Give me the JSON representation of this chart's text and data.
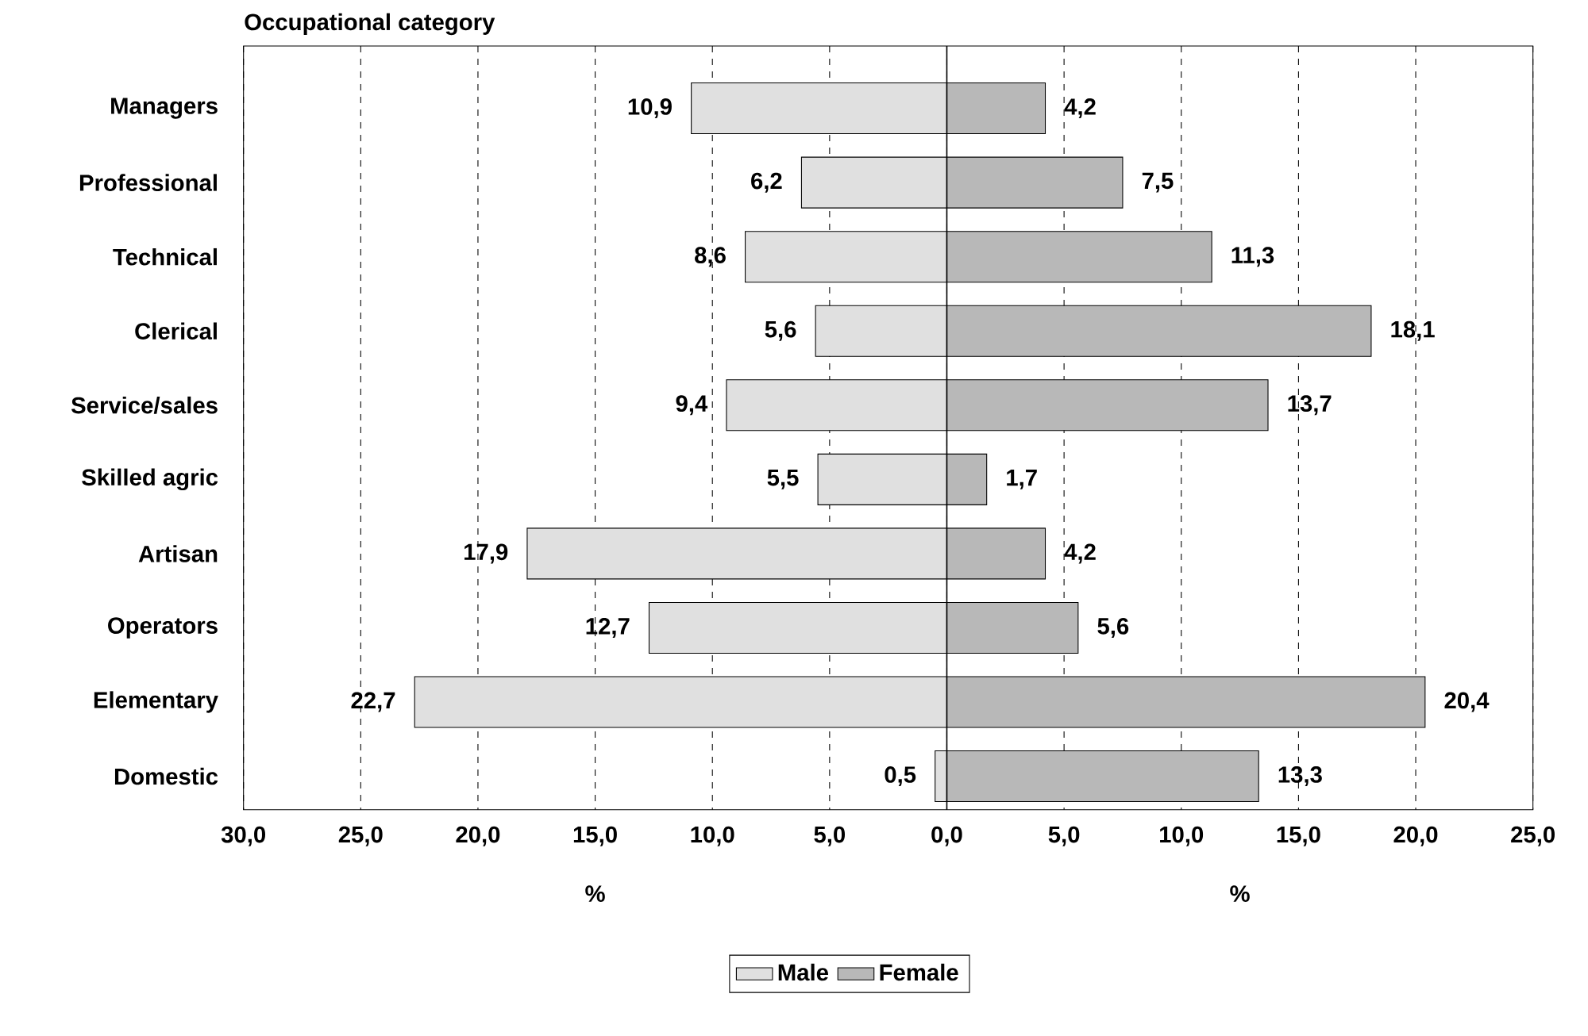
{
  "chart_data": {
    "type": "bar",
    "orientation": "horizontal",
    "ylabel": "Occupational category",
    "xlabel": "%",
    "annotations": [
      "%"
    ],
    "categories": [
      "Managers",
      "Professional",
      "Technical",
      "Clerical",
      "Service/sales",
      "Skilled agric",
      "Artisan",
      "Operators",
      "Elementary",
      "Domestic"
    ],
    "series": [
      {
        "name": "Male",
        "color": "#e0e0e0",
        "base": [
          -10.9,
          -6.2,
          -8.6,
          -5.6,
          -9.4,
          -5.5,
          -17.9,
          -12.7,
          -22.7,
          -0.5
        ],
        "values": [
          10.9,
          6.2,
          8.6,
          5.6,
          9.4,
          5.5,
          17.9,
          12.7,
          22.7,
          0.5
        ],
        "value_labels": [
          "10,9",
          "6,2",
          "8,6",
          "5,6",
          "9,4",
          "5,5",
          "17,9",
          "12,7",
          "22,7",
          "0,5"
        ]
      },
      {
        "name": "Female",
        "color": "#b8b8b8",
        "values": [
          4.2,
          7.5,
          11.3,
          18.1,
          13.7,
          1.7,
          4.2,
          5.6,
          20.4,
          13.3
        ],
        "value_labels": [
          "4,2",
          "7,5",
          "11,3",
          "18,1",
          "13,7",
          "1,7",
          "4,2",
          "5,6",
          "20,4",
          "13,3"
        ]
      }
    ],
    "xlim": [
      -30,
      25
    ],
    "xticks": [
      {
        "value": -30,
        "label": "30,0"
      },
      {
        "value": -25,
        "label": "25,0"
      },
      {
        "value": -20,
        "label": "20,0"
      },
      {
        "value": -15,
        "label": "15,0"
      },
      {
        "value": -10,
        "label": "10,0"
      },
      {
        "value": -5,
        "label": "5,0"
      },
      {
        "value": 0,
        "label": "0,0"
      },
      {
        "value": 5,
        "label": "5,0"
      },
      {
        "value": 10,
        "label": "10,0"
      },
      {
        "value": 15,
        "label": "15,0"
      },
      {
        "value": 20,
        "label": "20,0"
      },
      {
        "value": 25,
        "label": "25,0"
      }
    ],
    "ref_lines": [
      {
        "axis": "x",
        "value": 0,
        "color": "#000000"
      }
    ],
    "grid": "x",
    "legend": "bottom"
  }
}
